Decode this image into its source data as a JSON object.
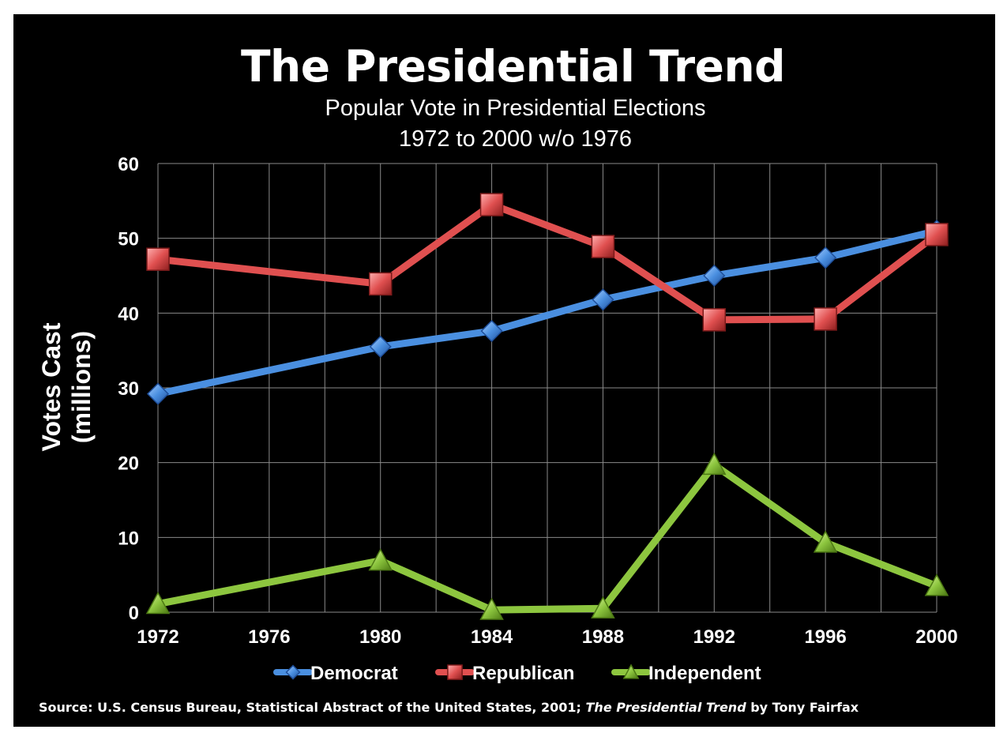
{
  "chart_data": {
    "type": "line",
    "title": "The Presidential Trend",
    "subtitle_lines": [
      "Popular Vote in Presidential Elections",
      "1972 to 2000  w/o 1976"
    ],
    "xlabel": "",
    "ylabel_lines": [
      "Votes Cast",
      "(millions)"
    ],
    "x_ticks": [
      "1972",
      "1976",
      "1980",
      "1984",
      "1988",
      "1992",
      "1996",
      "2000"
    ],
    "y_ticks": [
      "0",
      "10",
      "20",
      "30",
      "40",
      "50",
      "60"
    ],
    "xlim": [
      1972,
      2000
    ],
    "ylim": [
      0,
      60
    ],
    "grid": true,
    "legend_position": "bottom",
    "x": [
      1972,
      1980,
      1984,
      1988,
      1992,
      1996,
      2000
    ],
    "series": [
      {
        "name": "Democrat",
        "color": "#4a8fe0",
        "marker": "diamond",
        "values": [
          29.2,
          35.5,
          37.6,
          41.8,
          45.0,
          47.4,
          51.0
        ]
      },
      {
        "name": "Republican",
        "color": "#e05050",
        "marker": "square",
        "values": [
          47.2,
          43.9,
          54.5,
          48.9,
          39.1,
          39.2,
          50.5
        ]
      },
      {
        "name": "Independent",
        "color": "#8dc63f",
        "marker": "triangle",
        "values": [
          1.1,
          6.9,
          0.3,
          0.5,
          19.7,
          9.3,
          3.5
        ]
      }
    ]
  },
  "source": {
    "prefix": "Source: U.S. Census Bureau, Statistical Abstract of the United States, 2001; ",
    "italic": "The Presidential Trend",
    "suffix": " by Tony Fairfax"
  }
}
